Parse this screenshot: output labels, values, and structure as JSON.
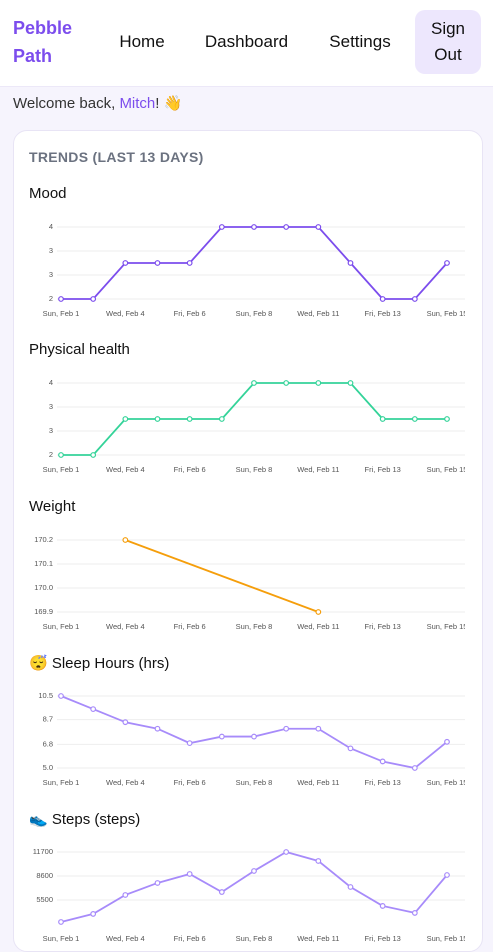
{
  "nav": {
    "brand": "Pebble Path",
    "links": [
      "Home",
      "Dashboard",
      "Settings"
    ],
    "active": 1,
    "sign_out": "Sign Out"
  },
  "welcome": {
    "prefix": "Welcome back, ",
    "name": "Mitch",
    "suffix": "! 👋"
  },
  "section_title": "TRENDS (LAST 13 DAYS)",
  "chart_data": [
    {
      "type": "line",
      "title": "Mood",
      "color": "#7c4ded",
      "categories": [
        "Sun, Feb 1",
        null,
        "Wed, Feb 4",
        null,
        "Fri, Feb 6",
        null,
        "Sun, Feb 8",
        null,
        "Wed, Feb 11",
        null,
        "Fri, Feb 13",
        null,
        "Sun, Feb 15"
      ],
      "values": [
        2,
        2,
        3,
        3,
        3,
        4,
        4,
        4,
        4,
        3,
        2,
        2,
        3
      ],
      "ylim": [
        2,
        4
      ],
      "yticks": [
        {
          "value": 2,
          "label": "2"
        },
        {
          "value": 2.667,
          "label": "3"
        },
        {
          "value": 3.333,
          "label": "3"
        },
        {
          "value": 4,
          "label": "4"
        }
      ],
      "grid": true
    },
    {
      "type": "line",
      "title": "Physical health",
      "color": "#34d399",
      "categories": [
        "Sun, Feb 1",
        null,
        "Wed, Feb 4",
        null,
        "Fri, Feb 6",
        null,
        "Sun, Feb 8",
        null,
        "Wed, Feb 11",
        null,
        "Fri, Feb 13",
        null,
        "Sun, Feb 15"
      ],
      "values": [
        2,
        2,
        3,
        3,
        3,
        3,
        4,
        4,
        4,
        4,
        3,
        3,
        3
      ],
      "ylim": [
        2,
        4
      ],
      "yticks": [
        {
          "value": 2,
          "label": "2"
        },
        {
          "value": 2.667,
          "label": "3"
        },
        {
          "value": 3.333,
          "label": "3"
        },
        {
          "value": 4,
          "label": "4"
        }
      ],
      "grid": true
    },
    {
      "type": "line",
      "title": "Weight",
      "color": "#f59e0b",
      "span_gaps": true,
      "categories": [
        "Sun, Feb 1",
        null,
        "Wed, Feb 4",
        null,
        "Fri, Feb 6",
        null,
        "Sun, Feb 8",
        null,
        "Wed, Feb 11",
        null,
        "Fri, Feb 13",
        null,
        "Sun, Feb 15"
      ],
      "values": [
        null,
        null,
        170.2,
        null,
        null,
        null,
        null,
        null,
        169.9,
        null,
        null,
        null,
        null
      ],
      "ylim": [
        169.9,
        170.2
      ],
      "yticks": [
        169.9,
        {
          "value": 170,
          "label": "170.0"
        },
        170.1,
        170.2
      ],
      "grid": true
    },
    {
      "type": "line",
      "title": "😴 Sleep Hours (hrs)",
      "color": "#a78bfa",
      "categories": [
        "Sun, Feb 1",
        null,
        "Wed, Feb 4",
        null,
        "Fri, Feb 6",
        null,
        "Sun, Feb 8",
        null,
        "Wed, Feb 11",
        null,
        "Fri, Feb 13",
        null,
        "Sun, Feb 15"
      ],
      "values": [
        10.5,
        9.5,
        8.5,
        8.0,
        6.9,
        7.4,
        7.4,
        8.0,
        8.0,
        6.5,
        5.5,
        5.0,
        7.0
      ],
      "ylim": [
        5,
        10.5
      ],
      "yticks": [
        {
          "value": 5,
          "label": "5.0"
        },
        6.8,
        8.7,
        10.5
      ],
      "grid": true
    },
    {
      "type": "line",
      "title": "👟 Steps (steps)",
      "color": "#a78bfa",
      "categories": [
        "Sun, Feb 1",
        null,
        "Wed, Feb 4",
        null,
        "Fri, Feb 6",
        null,
        "Sun, Feb 8",
        null,
        "Wed, Feb 11",
        null,
        "Fri, Feb 13",
        null,
        "Sun, Feb 15"
      ],
      "values": [
        2660,
        3700,
        6150,
        7700,
        8860,
        6530,
        9250,
        11700,
        10540,
        7180,
        4730,
        3830,
        8730
      ],
      "ylim": [
        2400,
        11700
      ],
      "yticks": [
        5500,
        8600,
        11700
      ],
      "grid": true
    }
  ]
}
